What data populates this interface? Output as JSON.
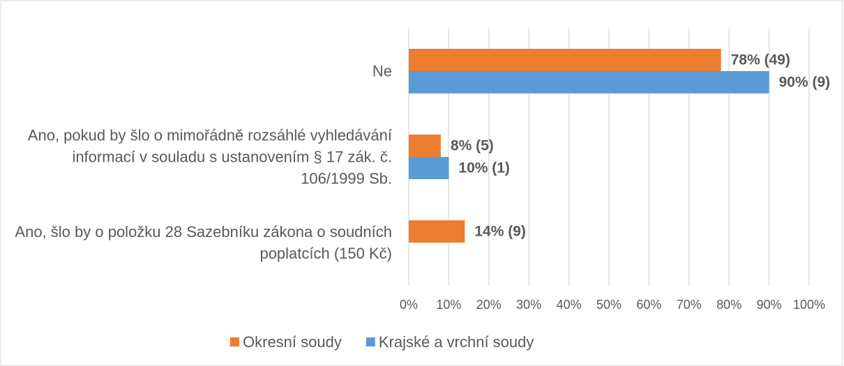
{
  "chart_data": {
    "type": "bar",
    "orientation": "horizontal",
    "categories": [
      "Ne",
      "Ano, pokud by šlo o mimořádně rozsáhlé vyhledávání informací v souladu s ustanovením § 17 zák. č. 106/1999 Sb.",
      "Ano, šlo by o položku 28 Sazebníku zákona o soudních poplatcích (150 Kč)"
    ],
    "series": [
      {
        "name": "Okresní soudy",
        "color": "#ed7d31",
        "values": [
          78,
          8,
          14
        ],
        "value_labels": [
          "78% (49)",
          "8% (5)",
          "14% (9)"
        ]
      },
      {
        "name": "Krajské a vrchní soudy",
        "color": "#5b9bd5",
        "values": [
          90,
          10,
          null
        ],
        "value_labels": [
          "90% (9)",
          "10% (1)",
          null
        ]
      }
    ],
    "xlim": [
      0,
      100
    ],
    "xticks": [
      {
        "value": 0,
        "label": "0%"
      },
      {
        "value": 10,
        "label": "10%"
      },
      {
        "value": 20,
        "label": "20%"
      },
      {
        "value": 30,
        "label": "30%"
      },
      {
        "value": 40,
        "label": "40%"
      },
      {
        "value": 50,
        "label": "50%"
      },
      {
        "value": 60,
        "label": "60%"
      },
      {
        "value": 70,
        "label": "70%"
      },
      {
        "value": 80,
        "label": "80%"
      },
      {
        "value": 90,
        "label": "90%"
      },
      {
        "value": 100,
        "label": "100%"
      }
    ],
    "grid": true,
    "legend": "bottom"
  }
}
